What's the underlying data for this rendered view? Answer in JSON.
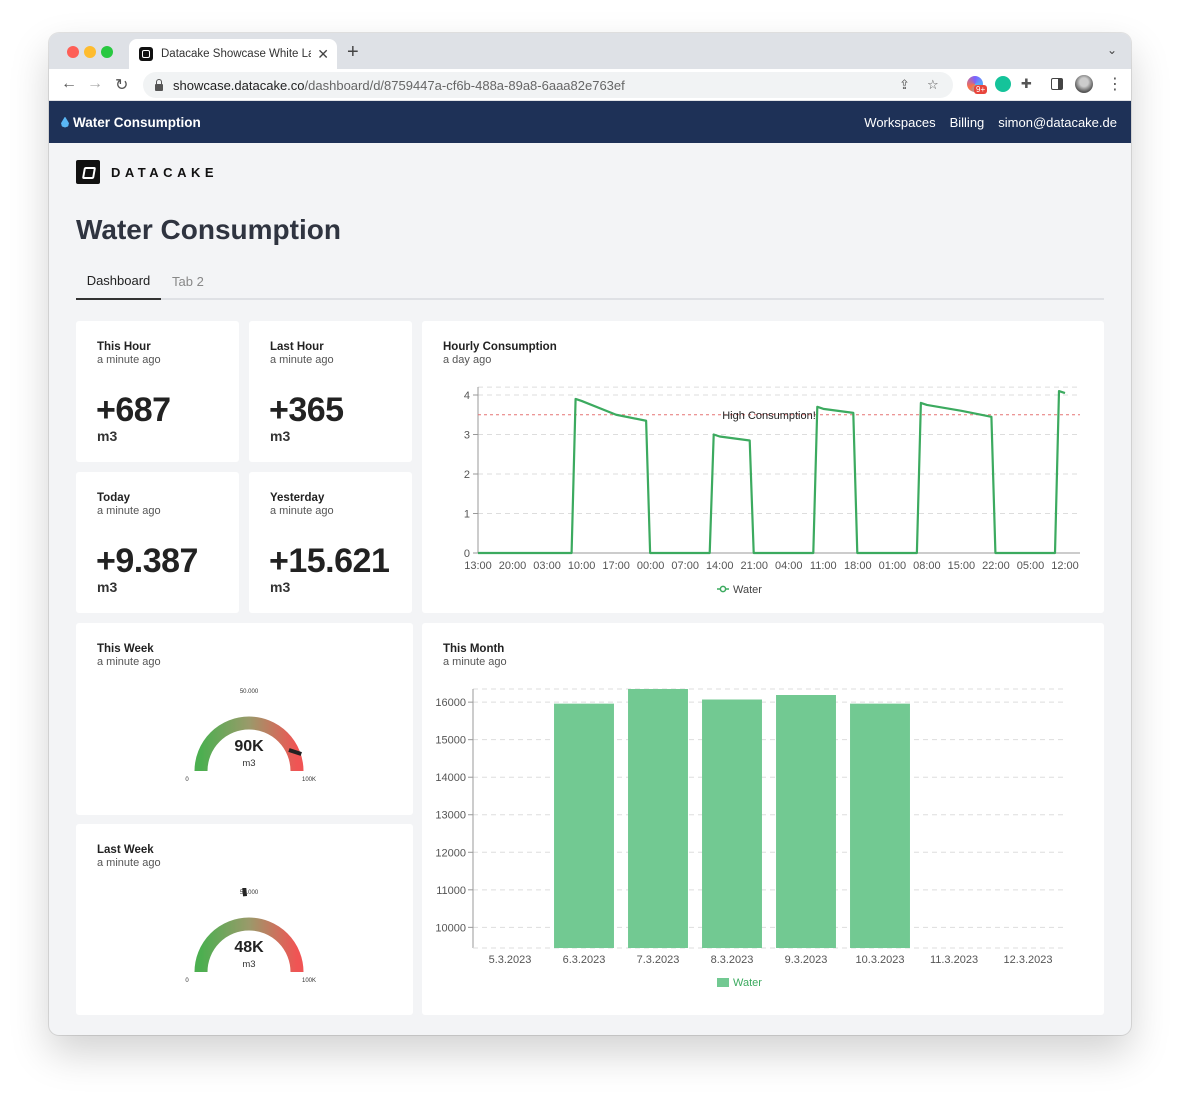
{
  "browser": {
    "tab_title": "Datacake Showcase White Lab",
    "url_host": "showcase.datacake.co",
    "url_path": "/dashboard/d/8759447a-cf6b-488a-89a8-6aaa82e763ef",
    "extension_badge": "9+"
  },
  "app": {
    "title": "Water Consumption",
    "nav": [
      "Workspaces",
      "Billing",
      "simon@datacake.de"
    ]
  },
  "brand": {
    "logo_text": "DATACAKE"
  },
  "page": {
    "title": "Water Consumption",
    "tabs": [
      {
        "label": "Dashboard",
        "active": true
      },
      {
        "label": "Tab 2",
        "active": false
      }
    ]
  },
  "widgets": {
    "this_hour": {
      "title": "This Hour",
      "updated": "a minute ago",
      "value": "+687",
      "unit": "m3"
    },
    "last_hour": {
      "title": "Last Hour",
      "updated": "a minute ago",
      "value": "+365",
      "unit": "m3"
    },
    "today": {
      "title": "Today",
      "updated": "a minute ago",
      "value": "+9.387",
      "unit": "m3"
    },
    "yesterday": {
      "title": "Yesterday",
      "updated": "a minute ago",
      "value": "+15.621",
      "unit": "m3"
    },
    "this_week": {
      "title": "This Week",
      "updated": "a minute ago",
      "value_label": "90K",
      "unit": "m3",
      "min_label": "0",
      "mid_label": "50.000",
      "max_label": "100K",
      "value": 90000,
      "max": 100000
    },
    "last_week": {
      "title": "Last Week",
      "updated": "a minute ago",
      "value_label": "48K",
      "unit": "m3",
      "min_label": "0",
      "mid_label": "50.000",
      "max_label": "100K",
      "value": 48000,
      "max": 100000
    },
    "hourly": {
      "title": "Hourly Consumption",
      "updated": "a day ago"
    },
    "monthly": {
      "title": "This Month",
      "updated": "a minute ago"
    }
  },
  "colors": {
    "navbar": "#1e3157",
    "series_line": "#3caa5f",
    "series_bar": "#72c992",
    "threshold": "#e57373"
  },
  "chart_data": [
    {
      "type": "line",
      "x": [
        "13:00",
        "20:00",
        "03:00",
        "10:00",
        "17:00",
        "00:00",
        "07:00",
        "14:00",
        "21:00",
        "04:00",
        "11:00",
        "18:00",
        "01:00",
        "08:00",
        "15:00",
        "22:00",
        "05:00",
        "12:00"
      ],
      "ylim": [
        0,
        4
      ],
      "yticks": [
        "0",
        "1",
        "2",
        "3",
        "4"
      ],
      "series": [
        {
          "name": "Water",
          "values": [
            0,
            0,
            0,
            3.9,
            3.5,
            0,
            0,
            3.0,
            0,
            0,
            3.7,
            0,
            0,
            3.8,
            3.6,
            0,
            0,
            4.1
          ]
        }
      ],
      "threshold": {
        "label": "High Consumption!",
        "value": 3.5
      },
      "legend": "bottom"
    },
    {
      "type": "bar",
      "categories": [
        "5.3.2023",
        "6.3.2023",
        "7.3.2023",
        "8.3.2023",
        "9.3.2023",
        "10.3.2023",
        "11.3.2023",
        "12.3.2023"
      ],
      "series": [
        {
          "name": "Water",
          "values": [
            null,
            15960,
            16350,
            16070,
            16190,
            15960,
            null,
            null
          ]
        }
      ],
      "ylim": [
        9450,
        16350
      ],
      "yticks": [
        "10000",
        "11000",
        "12000",
        "13000",
        "14000",
        "15000",
        "16000"
      ],
      "legend": "bottom"
    }
  ]
}
